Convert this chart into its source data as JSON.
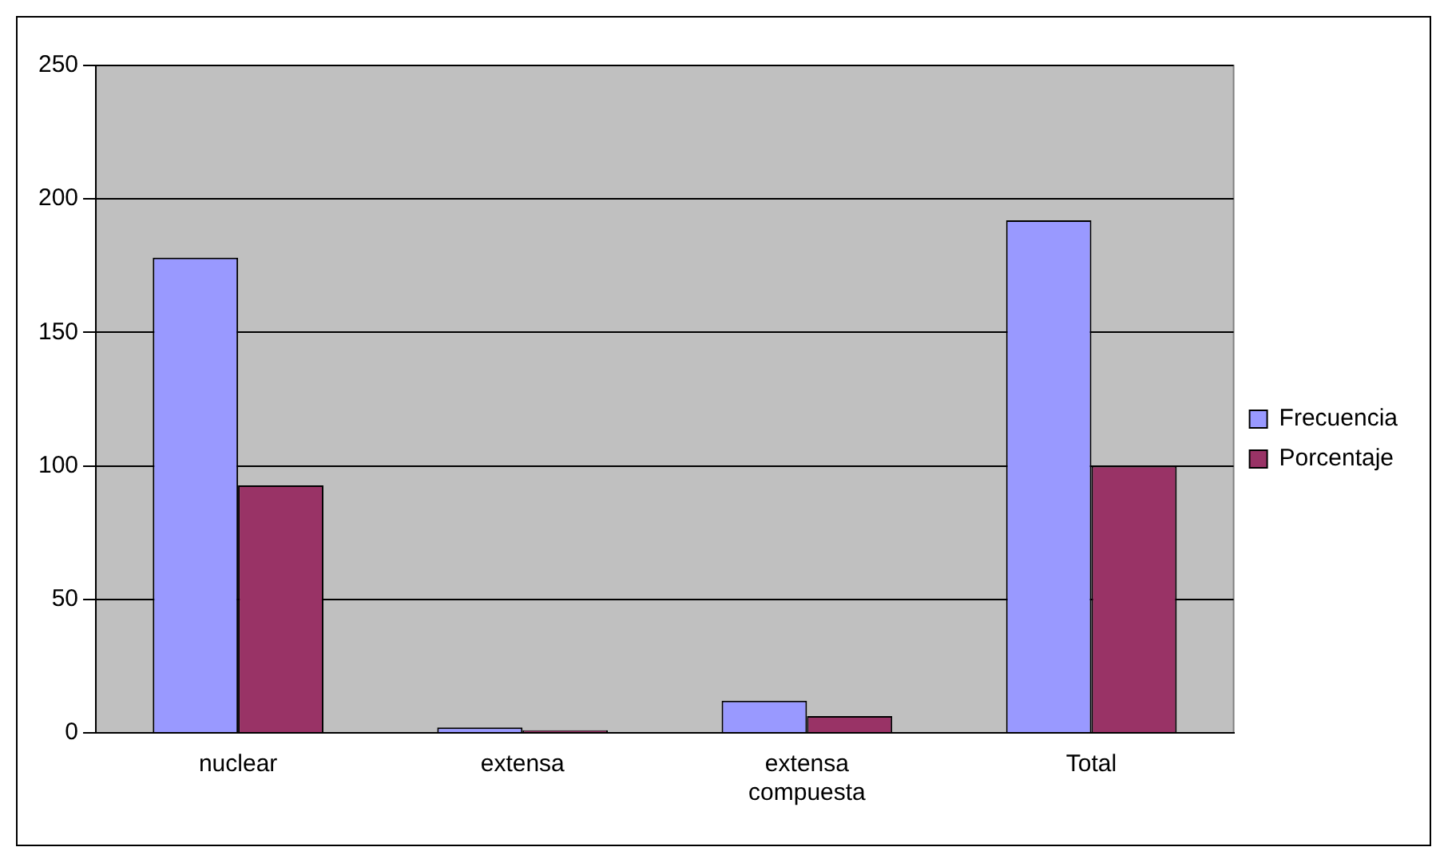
{
  "chart_data": {
    "type": "bar",
    "categories": [
      "nuclear",
      "extensa",
      "extensa compuesta",
      "Total"
    ],
    "series": [
      {
        "name": "Frecuencia",
        "color": "#9999ff",
        "values": [
          178,
          2,
          12,
          192
        ]
      },
      {
        "name": "Porcentaje",
        "color": "#993366",
        "values": [
          92.7,
          1,
          6.3,
          100
        ]
      }
    ],
    "ylim": [
      0,
      250
    ],
    "yticks": [
      0,
      50,
      100,
      150,
      200,
      250
    ],
    "grid": "y",
    "legend": "right"
  }
}
